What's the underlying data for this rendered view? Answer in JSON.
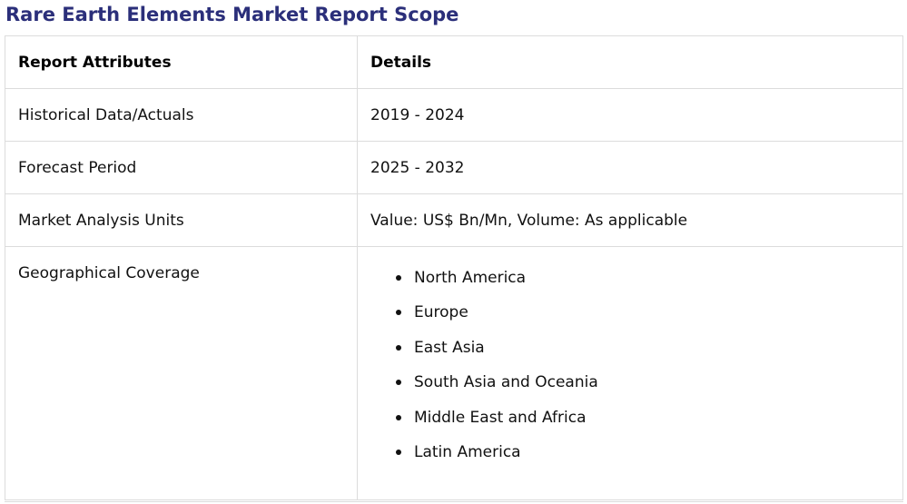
{
  "title": "Rare Earth Elements Market Report Scope",
  "table": {
    "header": {
      "attribute": "Report Attributes",
      "details": "Details"
    },
    "rows": [
      {
        "attribute": "Historical Data/Actuals",
        "details": "2019 - 2024"
      },
      {
        "attribute": "Forecast Period",
        "details": "2025 - 2032"
      },
      {
        "attribute": "Market Analysis Units",
        "details": "Value: US$ Bn/Mn, Volume: As applicable"
      }
    ],
    "geographical": {
      "attribute": "Geographical Coverage",
      "regions": [
        "North America",
        "Europe",
        "East Asia",
        "South Asia and Oceania",
        "Middle East and Africa",
        "Latin America"
      ]
    }
  }
}
